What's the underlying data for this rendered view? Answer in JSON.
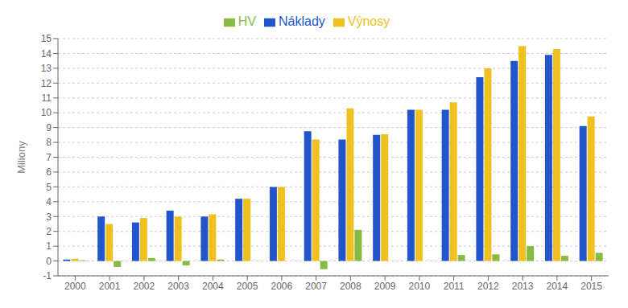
{
  "chart_data": {
    "type": "bar",
    "categories": [
      "2000",
      "2001",
      "2002",
      "2003",
      "2004",
      "2005",
      "2006",
      "2007",
      "2008",
      "2009",
      "2010",
      "2011",
      "2012",
      "2013",
      "2014",
      "2015"
    ],
    "series": [
      {
        "name": "Náklady",
        "color": "#2255CC",
        "values": [
          0.1,
          3.0,
          2.6,
          3.4,
          3.0,
          4.2,
          5.0,
          8.75,
          8.2,
          8.5,
          10.2,
          10.2,
          12.4,
          13.5,
          13.9,
          9.1
        ]
      },
      {
        "name": "Výnosy",
        "color": "#F0C020",
        "values": [
          0.15,
          2.5,
          2.9,
          3.0,
          3.15,
          4.2,
          5.0,
          8.2,
          10.3,
          8.55,
          10.2,
          10.7,
          13.0,
          14.5,
          14.3,
          9.75
        ]
      },
      {
        "name": "HV",
        "color": "#88BB44",
        "values": [
          0.05,
          -0.4,
          0.2,
          -0.3,
          0.1,
          0.0,
          0.0,
          -0.55,
          2.1,
          0.0,
          0.0,
          0.4,
          0.45,
          1.0,
          0.35,
          0.55
        ]
      }
    ],
    "ylabel": "Miliony",
    "ylim": [
      -1,
      15
    ],
    "yticks": [
      -1,
      0,
      1,
      2,
      3,
      4,
      5,
      6,
      7,
      8,
      9,
      10,
      11,
      12,
      13,
      14,
      15
    ],
    "grid": true,
    "legend": "top"
  }
}
